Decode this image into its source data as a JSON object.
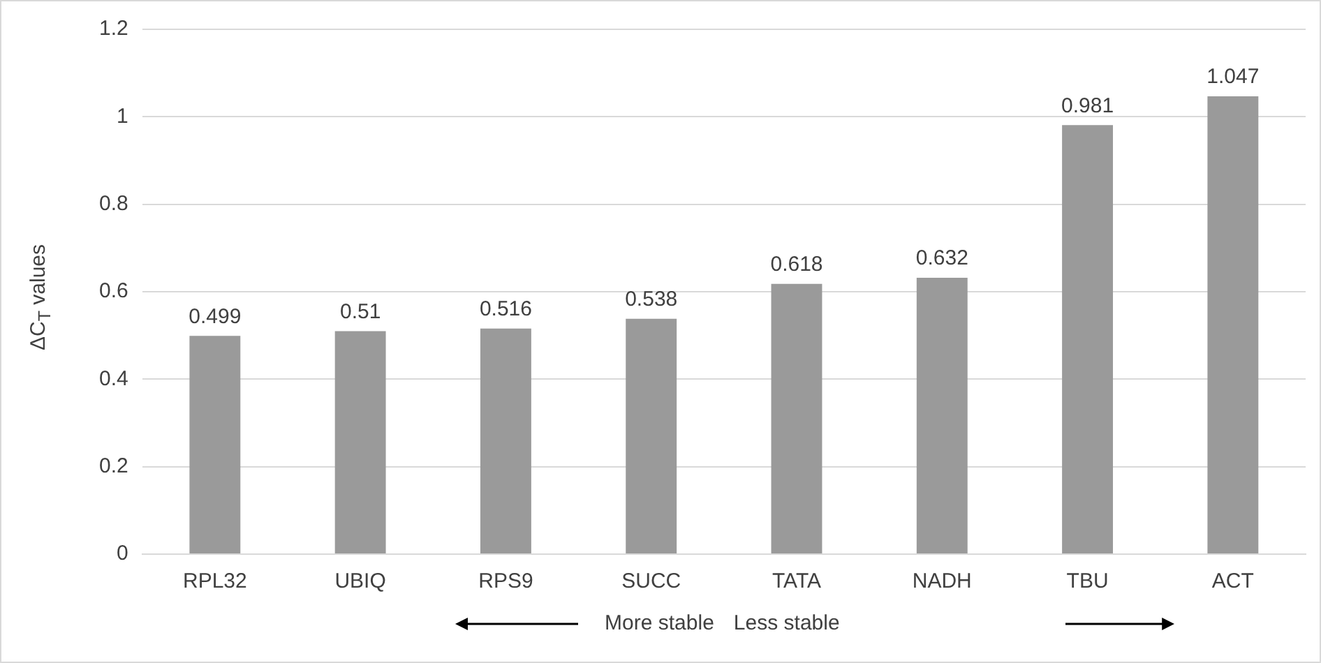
{
  "chart_data": {
    "type": "bar",
    "ylabel": "ΔC$_{T}$ values",
    "categories": [
      "RPL32",
      "UBIQ",
      "RPS9",
      "SUCC",
      "TATA",
      "NADH",
      "TBU",
      "ACT"
    ],
    "values": [
      0.499,
      0.51,
      0.516,
      0.538,
      0.618,
      0.632,
      0.981,
      1.047
    ],
    "color": "#9a9a9a",
    "ylim": [
      0,
      1.2
    ],
    "yticks": [
      0,
      0.2,
      0.4,
      0.6,
      0.8,
      1,
      1.2
    ],
    "grid": "y",
    "data_labels": true,
    "legend": false,
    "annotations": [
      "More stable",
      "Less stable"
    ]
  }
}
